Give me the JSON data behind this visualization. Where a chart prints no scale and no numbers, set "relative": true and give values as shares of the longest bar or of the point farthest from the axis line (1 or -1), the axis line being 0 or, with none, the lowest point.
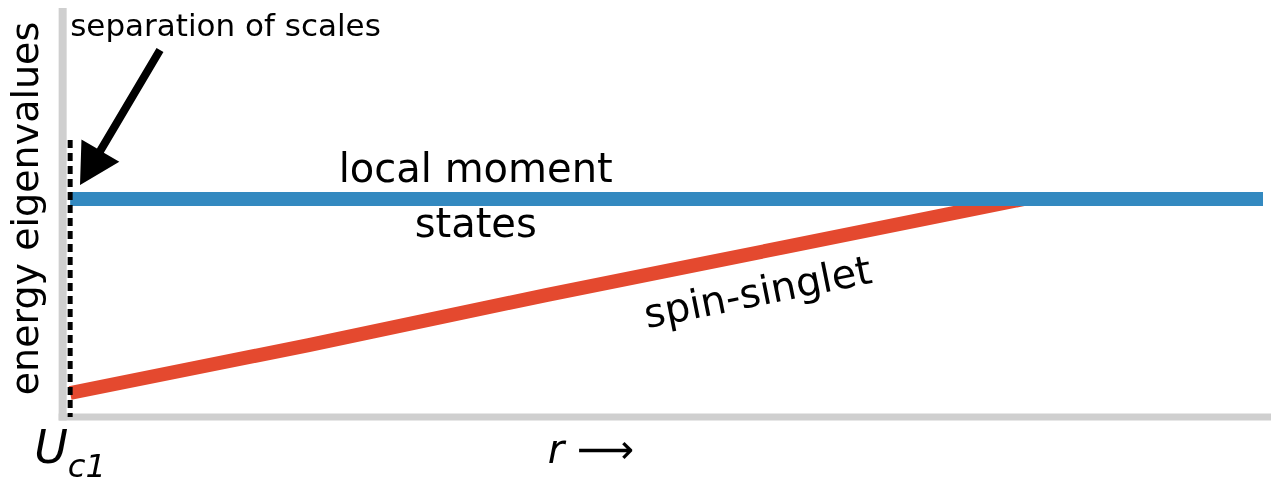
{
  "chart_data": {
    "type": "line",
    "relative": true,
    "xlabel": "r ⟶",
    "ylabel": "energy eigenvalues",
    "categories": [
      null,
      null,
      null,
      null,
      null,
      null
    ],
    "series": [
      {
        "name": "local moment states",
        "color": "#3389c0",
        "values": [
          1,
          1,
          1,
          1,
          1,
          1
        ]
      },
      {
        "name": "spin-singlet",
        "color": "#e4492f",
        "values": [
          0.11,
          0.33,
          0.56,
          0.78,
          1,
          null
        ]
      }
    ],
    "ref_lines": [
      {
        "axis": "x",
        "value": "U$_{c1}$",
        "label": "separation of scales",
        "color": "#000000",
        "line_style": "dashed"
      }
    ]
  }
}
